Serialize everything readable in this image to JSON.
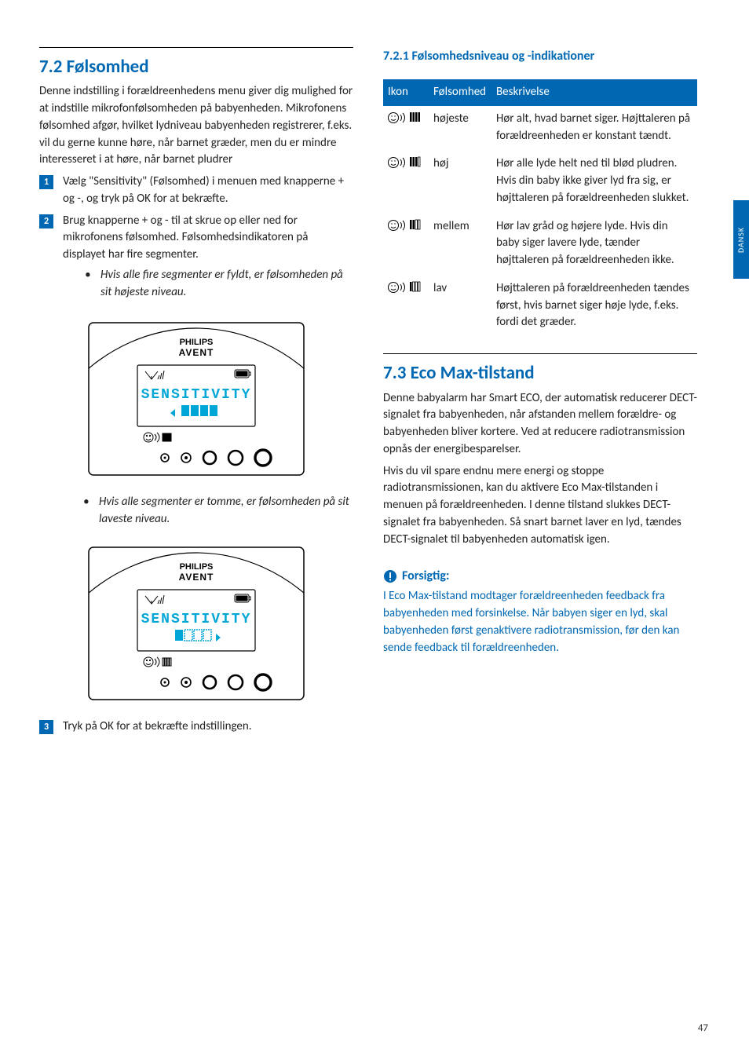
{
  "side_tab": "DANSK",
  "page_number": "47",
  "left": {
    "sec_num_title": "7.2 Følsomhed",
    "intro": "Denne indstilling i forældreenhedens menu giver dig mulighed for at indstille mikrofonfølsomheden på babyenheden. Mikrofonens følsomhed afgør, hvilket lydniveau babyenheden registrerer, f.eks. vil du gerne kunne høre, når barnet græder, men du er mindre interesseret i at høre, når barnet pludrer",
    "steps": {
      "s1": "Vælg \"Sensitivity\" (Følsomhed) i menuen med knapperne + og -, og tryk på OK for at bekræfte.",
      "s2": "Brug knapperne + og - til at skrue op eller ned for mikrofonens følsomhed. Følsomhedsindikatoren på displayet har fire segmenter.",
      "s2_b1": "Hvis alle fire segmenter er fyldt, er følsomheden på sit højeste niveau.",
      "s2_b2": "Hvis alle segmenter er tomme, er følsomheden på sit laveste niveau.",
      "s3": "Tryk på OK for at bekræfte indstillingen."
    },
    "device_brand": "PHILIPS",
    "device_sub": "AVENT",
    "device_screen_text": "SENSITIVITY"
  },
  "right": {
    "subsec_title": "7.2.1 Følsomhedsniveau og -indikationer",
    "th_icon": "Ikon",
    "th_sens": "Følsomhed",
    "th_desc": "Beskrivelse",
    "rows": [
      {
        "level": "højeste",
        "desc": "Hør alt, hvad barnet siger. Højttaleren på forældreenheden er konstant tændt.",
        "bars": 4
      },
      {
        "level": "høj",
        "desc": "Hør alle lyde helt ned til blød pludren. Hvis din baby ikke giver lyd fra sig, er højttaleren på forældreenheden slukket.",
        "bars": 3
      },
      {
        "level": "mellem",
        "desc": "Hør lav gråd og højere lyde. Hvis din baby siger lavere lyde, tænder højttaleren på forældreenheden ikke.",
        "bars": 2
      },
      {
        "level": "lav",
        "desc": "Højttaleren på forældreenheden tændes først, hvis barnet siger høje lyde, f.eks. fordi det græder.",
        "bars": 1
      }
    ],
    "sec2_title": "7.3 Eco Max-tilstand",
    "sec2_p1": "Denne babyalarm har Smart ECO, der automatisk reducerer DECT-signalet fra babyenheden, når afstanden mellem forældre- og babyenheden bliver kortere. Ved at reducere radiotransmission opnås der energibesparelser.",
    "sec2_p2": "Hvis du vil spare endnu mere energi og stoppe radiotransmissionen, kan du aktivere Eco Max-tilstanden i menuen på forældreenheden. I denne tilstand slukkes DECT-signalet fra babyenheden. Så snart barnet laver en lyd, tændes DECT-signalet til babyenheden automatisk igen.",
    "caution_label": "Forsigtig:",
    "caution_body": "I Eco Max-tilstand modtager forældreenheden feedback fra babyenheden med forsinkelse. Når babyen siger en lyd, skal babyenheden først genaktivere radiotransmission, før den kan sende feedback til forældreenheden."
  },
  "colors": {
    "brand_blue": "#0068b3",
    "screen_blue": "#00a6d6"
  }
}
